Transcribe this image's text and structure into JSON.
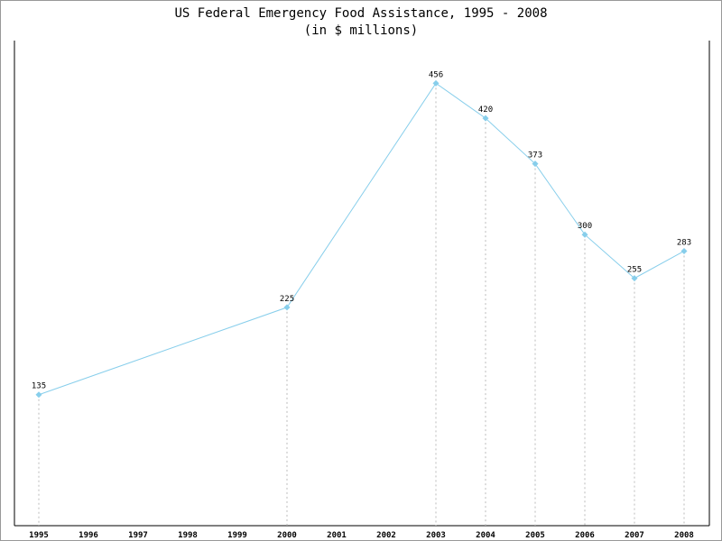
{
  "chart_data": {
    "type": "line",
    "title": "US Federal Emergency Food Assistance, 1995 - 2008",
    "subtitle": "(in $ millions)",
    "xlabel": "",
    "ylabel": "",
    "categories": [
      "1995",
      "1996",
      "1997",
      "1998",
      "1999",
      "2000",
      "2001",
      "2002",
      "2003",
      "2004",
      "2005",
      "2006",
      "2007",
      "2008"
    ],
    "points": [
      {
        "x": "1995",
        "y": 135
      },
      {
        "x": "2000",
        "y": 225
      },
      {
        "x": "2003",
        "y": 456
      },
      {
        "x": "2004",
        "y": 420
      },
      {
        "x": "2005",
        "y": 373
      },
      {
        "x": "2006",
        "y": 300
      },
      {
        "x": "2007",
        "y": 255
      },
      {
        "x": "2008",
        "y": 283
      }
    ],
    "ylim": [
      0,
      500
    ],
    "grid": false,
    "drop_lines": true,
    "legend": "none",
    "colors": {
      "line": "#87ceeb",
      "marker": "#87ceeb",
      "drop_line": "#bbbbbb",
      "axis": "#000000"
    }
  }
}
